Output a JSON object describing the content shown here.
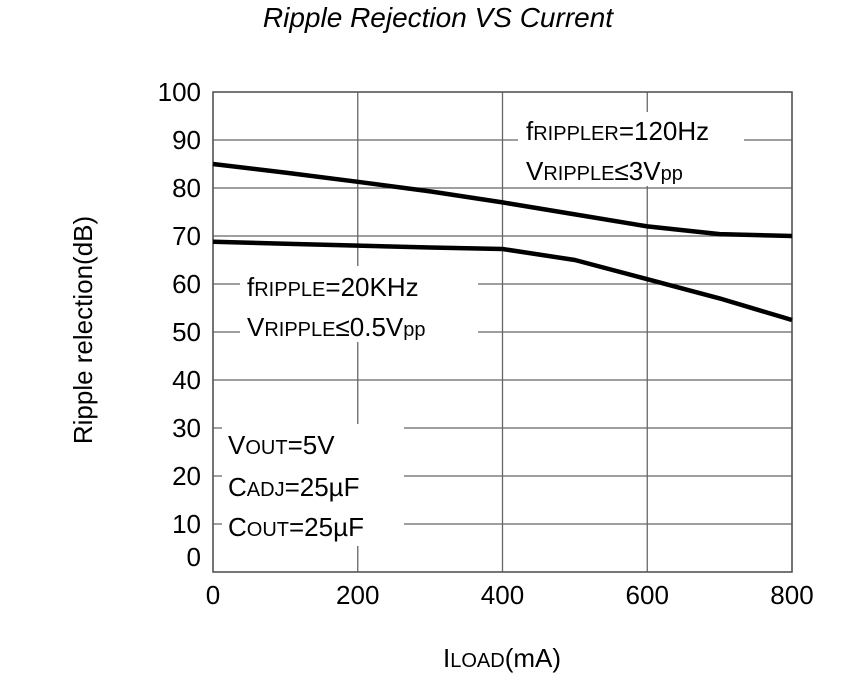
{
  "chart_data": {
    "type": "line",
    "title": "Ripple Rejection VS Current",
    "xlabel": {
      "main": "I",
      "sub": "LOAD",
      "unit": "(mA)"
    },
    "ylabel": "Ripple relection(dB)",
    "xlim": [
      0,
      800
    ],
    "ylim": [
      0,
      100
    ],
    "x_ticks": [
      "0",
      "200",
      "400",
      "600",
      "800"
    ],
    "y_ticks": [
      "0",
      "10",
      "20",
      "30",
      "40",
      "50",
      "60",
      "70",
      "80",
      "90",
      "100"
    ],
    "grid": true,
    "series": [
      {
        "x": [
          0,
          100,
          200,
          300,
          400,
          500,
          600,
          700,
          800
        ],
        "y": [
          85,
          83.2,
          81.3,
          79.3,
          77,
          74.5,
          72,
          70.4,
          70
        ]
      },
      {
        "x": [
          0,
          100,
          200,
          300,
          400,
          500,
          600,
          700,
          800
        ],
        "y": [
          68.8,
          68.4,
          68,
          67.6,
          67.3,
          65,
          61,
          57,
          52.5
        ]
      }
    ],
    "annotations": {
      "ann1": {
        "l1a": "f",
        "l1b": "RIPPLER",
        "l1c": "=120Hz",
        "l2a": "V",
        "l2b": "RIPPLE",
        "l2c": "≤3V",
        "l2d": "pp"
      },
      "ann2": {
        "l1a": "f",
        "l1b": "RIPPLE",
        "l1c": "=20KHz",
        "l2a": "V",
        "l2b": "RIPPLE",
        "l2c": "≤0.5V",
        "l2d": "pp"
      },
      "ann3": {
        "l1a": "V",
        "l1b": "OUT",
        "l1c": "=5V",
        "l2a": "C",
        "l2b": "ADJ",
        "l2c": "=25µF",
        "l3a": "C",
        "l3b": "OUT",
        "l3c": "=25µF"
      }
    }
  }
}
